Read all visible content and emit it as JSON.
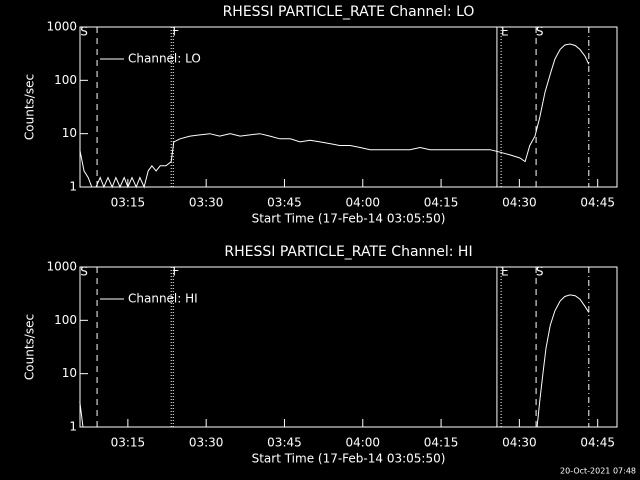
{
  "chart_data": [
    {
      "type": "line",
      "title": "RHESSI PARTICLE_RATE Channel: LO",
      "xlabel": "Start Time (17-Feb-14 03:05:50)",
      "ylabel": "Counts/sec",
      "log_y": true,
      "legend": "upper left",
      "xlim": [
        5.83,
        108.7
      ],
      "ylim": [
        1,
        1000
      ],
      "xticks": [
        {
          "value": 15,
          "label": "03:15"
        },
        {
          "value": 30,
          "label": "03:30"
        },
        {
          "value": 45,
          "label": "03:45"
        },
        {
          "value": 60,
          "label": "04:00"
        },
        {
          "value": 75,
          "label": "04:15"
        },
        {
          "value": 90,
          "label": "04:30"
        },
        {
          "value": 105,
          "label": "04:45"
        }
      ],
      "yticks": [
        1,
        10,
        100,
        1000
      ],
      "events": [
        {
          "x": 9.1,
          "style": "dashed"
        },
        {
          "x": 23.3,
          "style": "dotted"
        },
        {
          "x": 23.7,
          "style": "dotted"
        },
        {
          "x": 85.7,
          "style": "solid"
        },
        {
          "x": 86.5,
          "style": "dotted"
        },
        {
          "x": 93.2,
          "style": "dashed"
        },
        {
          "x": 103.3,
          "style": "dashdot"
        }
      ],
      "annotations": [
        {
          "x": 6.6,
          "text": "S"
        },
        {
          "x": 24.2,
          "text": "F"
        },
        {
          "x": 87.2,
          "text": "E"
        },
        {
          "x": 93.9,
          "text": "S"
        }
      ],
      "x": [
        5.8,
        6.6,
        7.4,
        8.1,
        8.9,
        9.7,
        10.4,
        11.2,
        12.0,
        12.7,
        13.5,
        14.3,
        15.0,
        15.8,
        16.6,
        17.3,
        18.1,
        18.9,
        19.6,
        20.4,
        21.2,
        22.3,
        23.3,
        23.8,
        25.0,
        26.9,
        28.8,
        30.7,
        32.6,
        34.6,
        36.5,
        38.4,
        40.3,
        42.2,
        44.1,
        46.1,
        48.0,
        49.9,
        51.8,
        53.7,
        55.6,
        57.6,
        59.5,
        61.4,
        63.3,
        65.2,
        67.1,
        69.0,
        71.0,
        72.9,
        74.8,
        76.7,
        78.6,
        80.5,
        82.5,
        84.4,
        86.3,
        88.2,
        90.1,
        91.1,
        92.0,
        93.0,
        93.9,
        94.9,
        95.9,
        96.8,
        97.8,
        98.7,
        99.7,
        100.7,
        101.6,
        102.6,
        103.3
      ],
      "series": [
        {
          "name": "Channel: LO",
          "color": "#ffffff",
          "values": [
            5,
            2,
            1.5,
            1,
            1,
            1.5,
            1,
            1.5,
            1,
            1.5,
            1,
            1.5,
            1,
            1.5,
            1,
            1.5,
            1,
            2,
            2.5,
            2,
            2.5,
            2.5,
            3,
            7,
            8,
            9,
            9.5,
            10,
            9,
            10,
            9,
            9.5,
            10,
            9,
            8,
            8,
            7,
            7.5,
            7,
            6.5,
            6,
            6,
            5.5,
            5,
            5,
            5,
            5,
            5,
            5.5,
            5,
            5,
            5,
            5,
            5,
            5,
            5,
            4.5,
            4,
            3.5,
            3,
            6,
            9,
            20,
            60,
            130,
            250,
            380,
            460,
            480,
            450,
            380,
            280,
            200
          ]
        }
      ]
    },
    {
      "type": "line",
      "title": "RHESSI PARTICLE_RATE Channel: HI",
      "xlabel": "Start Time (17-Feb-14 03:05:50)",
      "ylabel": "Counts/sec",
      "log_y": true,
      "legend": "upper left",
      "xlim": [
        5.83,
        108.7
      ],
      "ylim": [
        1,
        1000
      ],
      "xticks": [
        {
          "value": 15,
          "label": "03:15"
        },
        {
          "value": 30,
          "label": "03:30"
        },
        {
          "value": 45,
          "label": "03:45"
        },
        {
          "value": 60,
          "label": "04:00"
        },
        {
          "value": 75,
          "label": "04:15"
        },
        {
          "value": 90,
          "label": "04:30"
        },
        {
          "value": 105,
          "label": "04:45"
        }
      ],
      "yticks": [
        1,
        10,
        100,
        1000
      ],
      "events": [
        {
          "x": 9.1,
          "style": "dashed"
        },
        {
          "x": 23.3,
          "style": "dotted"
        },
        {
          "x": 23.7,
          "style": "dotted"
        },
        {
          "x": 85.7,
          "style": "solid"
        },
        {
          "x": 86.5,
          "style": "dotted"
        },
        {
          "x": 93.2,
          "style": "dashed"
        },
        {
          "x": 103.3,
          "style": "dashdot"
        }
      ],
      "annotations": [
        {
          "x": 6.6,
          "text": "S"
        },
        {
          "x": 24.2,
          "text": "F"
        },
        {
          "x": 87.2,
          "text": "E"
        },
        {
          "x": 93.9,
          "text": "S"
        }
      ],
      "x": [
        5.8,
        6.4,
        50,
        93.4,
        93.9,
        94.5,
        95.1,
        95.9,
        96.8,
        97.8,
        98.7,
        99.7,
        100.7,
        101.6,
        102.6,
        103.3
      ],
      "series": [
        {
          "name": "Channel: HI",
          "color": "#ffffff",
          "values": [
            3,
            1,
            null,
            1,
            3,
            10,
            30,
            80,
            150,
            230,
            280,
            300,
            290,
            250,
            180,
            140
          ]
        }
      ]
    }
  ],
  "footer": "20-Oct-2021 07:48"
}
